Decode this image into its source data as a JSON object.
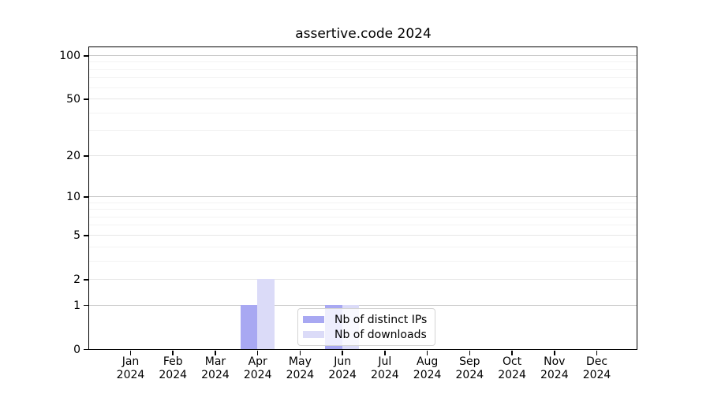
{
  "title": "assertive.code 2024",
  "chart_data": {
    "type": "bar",
    "title": "assertive.code 2024",
    "categories": [
      "Jan",
      "Feb",
      "Mar",
      "Apr",
      "May",
      "Jun",
      "Jul",
      "Aug",
      "Sep",
      "Oct",
      "Nov",
      "Dec"
    ],
    "year": "2024",
    "series": [
      {
        "name": "Nb of distinct IPs",
        "color": "#a8a8f2",
        "values": [
          0,
          0,
          0,
          1,
          0,
          1,
          0,
          0,
          0,
          0,
          0,
          0
        ]
      },
      {
        "name": "Nb of downloads",
        "color": "#dbdbf8",
        "values": [
          0,
          0,
          0,
          2,
          0,
          1,
          0,
          0,
          0,
          0,
          0,
          0
        ]
      }
    ],
    "xlabel": "",
    "ylabel": "",
    "ylim": [
      0,
      100
    ],
    "yscale": "log-like",
    "y_major_ticks": [
      100,
      50,
      20,
      10,
      5,
      2,
      1,
      0
    ],
    "y_minor_ticks": [
      3,
      4,
      6,
      7,
      8,
      9,
      30,
      40,
      60,
      70,
      80,
      90
    ],
    "grid": "horizontal",
    "legend_position": "lower center inside plot",
    "axis_color": "#000000",
    "grid_strong_color": "#c8c8c8",
    "grid_weak_color": "#e6e6e6",
    "grid_minor_color": "#f3f3f3"
  }
}
